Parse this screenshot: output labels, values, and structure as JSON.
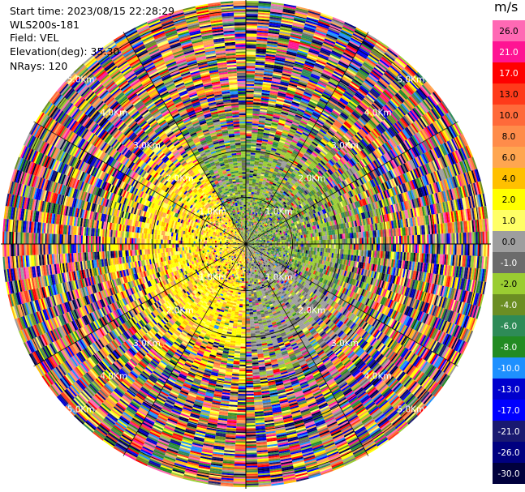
{
  "header": {
    "start_time": "Start time: 2023/08/15 22:28:29",
    "site": "WLS200s-181",
    "field": "Field: VEL",
    "elevation": "Elevation(deg): 35.30",
    "nrays": "NRays: 120"
  },
  "chart_data": {
    "type": "heatmap",
    "projection": "polar PPI",
    "field": "VEL",
    "n_rays": 120,
    "range_rings_km": [
      1.0,
      2.0,
      3.0,
      4.0,
      5.0
    ],
    "ring_labels": [
      "1.0Km",
      "2.0Km",
      "3.0Km",
      "4.0Km",
      "5.0Km"
    ],
    "max_range_km": 5.25,
    "crosshair": true,
    "colorbar": {
      "unit": "m/s",
      "tick_labels": [
        "26.0",
        "21.0",
        "17.0",
        "13.0",
        "10.0",
        "8.0",
        "6.0",
        "4.0",
        "2.0",
        "1.0",
        "0.0",
        "-1.0",
        "-2.0",
        "-4.0",
        "-6.0",
        "-8.0",
        "-10.0",
        "-13.0",
        "-17.0",
        "-21.0",
        "-26.0",
        "-30.0"
      ],
      "colors": [
        "#ff69b4",
        "#ff1493",
        "#ff0000",
        "#ff3a1a",
        "#ff6a3a",
        "#ff8c4a",
        "#ffa650",
        "#ffc000",
        "#ffff00",
        "#ffff66",
        "#9e9e9e",
        "#6b6b6b",
        "#9acd32",
        "#6b8e23",
        "#2e8b57",
        "#228b22",
        "#1e90ff",
        "#0000cd",
        "#0000ff",
        "#191970",
        "#000080",
        "#00003c"
      ]
    }
  }
}
